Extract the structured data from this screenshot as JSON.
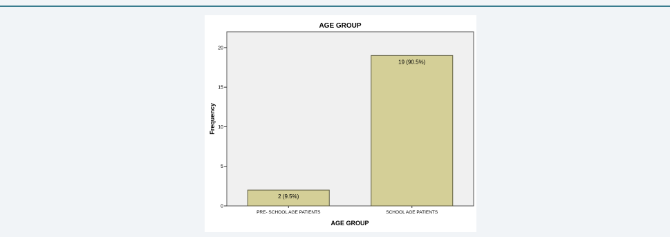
{
  "chart_data": {
    "type": "bar",
    "title": "AGE GROUP",
    "xlabel": "AGE GROUP",
    "ylabel": "Frequency",
    "categories": [
      "PRE- SCHOOL AGE PATIENTS",
      "SCHOOL AGE PATIENTS"
    ],
    "values": [
      2,
      19
    ],
    "data_labels": [
      "2 (9.5%)",
      "19 (90.5%)"
    ],
    "yticks": [
      0,
      5,
      10,
      15,
      20
    ],
    "ytick_labels": [
      "0",
      "5",
      "10",
      "15",
      "20"
    ],
    "ylim": [
      0,
      22
    ],
    "grid": false,
    "bar_color": "#d4cf97",
    "bar_edge_color": "#5c5a3e",
    "plot_background": "#f0f0f0"
  }
}
